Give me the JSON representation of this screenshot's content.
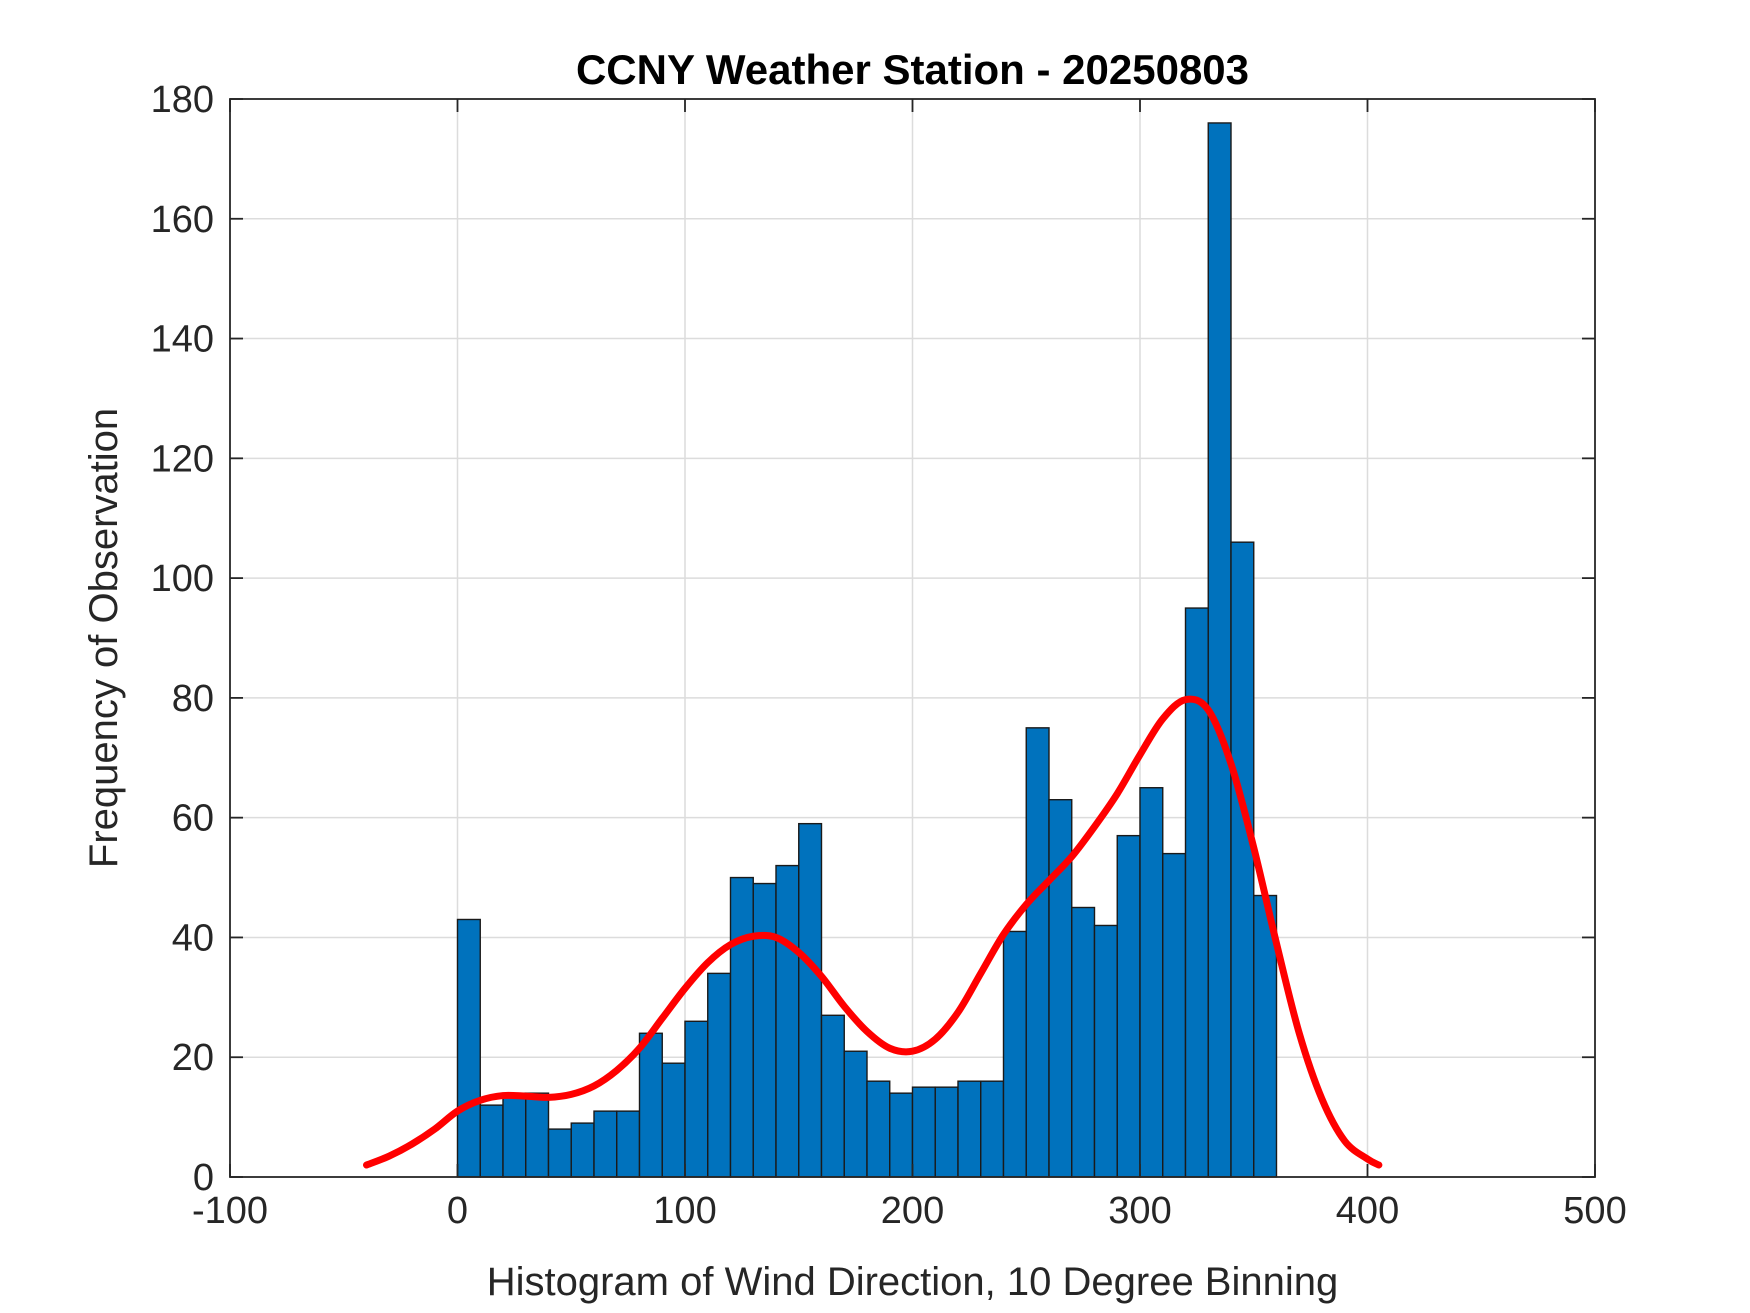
{
  "chart_data": {
    "type": "bar",
    "title": "CCNY Weather Station - 20250803",
    "xlabel": "Histogram of Wind Direction, 10 Degree Binning",
    "ylabel": "Frequency of Observation",
    "xlim": [
      -100,
      500
    ],
    "ylim": [
      0,
      180
    ],
    "xticks": [
      -100,
      0,
      100,
      200,
      300,
      400,
      500
    ],
    "yticks": [
      0,
      20,
      40,
      60,
      80,
      100,
      120,
      140,
      160,
      180
    ],
    "grid": true,
    "bin_width": 10,
    "bins": [
      {
        "start": 0,
        "value": 43
      },
      {
        "start": 10,
        "value": 12
      },
      {
        "start": 20,
        "value": 14
      },
      {
        "start": 30,
        "value": 14
      },
      {
        "start": 40,
        "value": 8
      },
      {
        "start": 50,
        "value": 9
      },
      {
        "start": 60,
        "value": 11
      },
      {
        "start": 70,
        "value": 11
      },
      {
        "start": 80,
        "value": 24
      },
      {
        "start": 90,
        "value": 19
      },
      {
        "start": 100,
        "value": 26
      },
      {
        "start": 110,
        "value": 34
      },
      {
        "start": 120,
        "value": 50
      },
      {
        "start": 130,
        "value": 49
      },
      {
        "start": 140,
        "value": 52
      },
      {
        "start": 150,
        "value": 59
      },
      {
        "start": 160,
        "value": 27
      },
      {
        "start": 170,
        "value": 21
      },
      {
        "start": 180,
        "value": 16
      },
      {
        "start": 190,
        "value": 14
      },
      {
        "start": 200,
        "value": 15
      },
      {
        "start": 210,
        "value": 15
      },
      {
        "start": 220,
        "value": 16
      },
      {
        "start": 230,
        "value": 16
      },
      {
        "start": 240,
        "value": 41
      },
      {
        "start": 250,
        "value": 75
      },
      {
        "start": 260,
        "value": 63
      },
      {
        "start": 270,
        "value": 45
      },
      {
        "start": 280,
        "value": 42
      },
      {
        "start": 290,
        "value": 57
      },
      {
        "start": 300,
        "value": 65
      },
      {
        "start": 310,
        "value": 54
      },
      {
        "start": 320,
        "value": 95
      },
      {
        "start": 330,
        "value": 176
      },
      {
        "start": 340,
        "value": 106
      },
      {
        "start": 350,
        "value": 47
      }
    ],
    "bar_color": "#0072BD",
    "bar_edge_color": "#1a1a1a",
    "fit_curve": {
      "color": "#FF0000",
      "points": [
        [
          -40,
          2
        ],
        [
          -30,
          3.5
        ],
        [
          -20,
          5.5
        ],
        [
          -10,
          8
        ],
        [
          0,
          11
        ],
        [
          10,
          12.8
        ],
        [
          20,
          13.6
        ],
        [
          30,
          13.5
        ],
        [
          40,
          13.3
        ],
        [
          50,
          13.8
        ],
        [
          60,
          15.2
        ],
        [
          70,
          17.8
        ],
        [
          80,
          21.5
        ],
        [
          90,
          26.5
        ],
        [
          100,
          31.5
        ],
        [
          110,
          35.8
        ],
        [
          120,
          38.8
        ],
        [
          130,
          40.2
        ],
        [
          140,
          40
        ],
        [
          150,
          37.5
        ],
        [
          160,
          33.5
        ],
        [
          170,
          28.5
        ],
        [
          180,
          24.3
        ],
        [
          190,
          21.5
        ],
        [
          200,
          21
        ],
        [
          210,
          23
        ],
        [
          220,
          27.5
        ],
        [
          230,
          34
        ],
        [
          240,
          40.5
        ],
        [
          250,
          45.5
        ],
        [
          260,
          49.5
        ],
        [
          270,
          53.5
        ],
        [
          280,
          58.5
        ],
        [
          290,
          64
        ],
        [
          300,
          70.5
        ],
        [
          310,
          76.5
        ],
        [
          320,
          79.7
        ],
        [
          330,
          78
        ],
        [
          340,
          69
        ],
        [
          350,
          55
        ],
        [
          360,
          39
        ],
        [
          370,
          24
        ],
        [
          380,
          13
        ],
        [
          390,
          6
        ],
        [
          400,
          3
        ],
        [
          405,
          2
        ]
      ]
    }
  }
}
